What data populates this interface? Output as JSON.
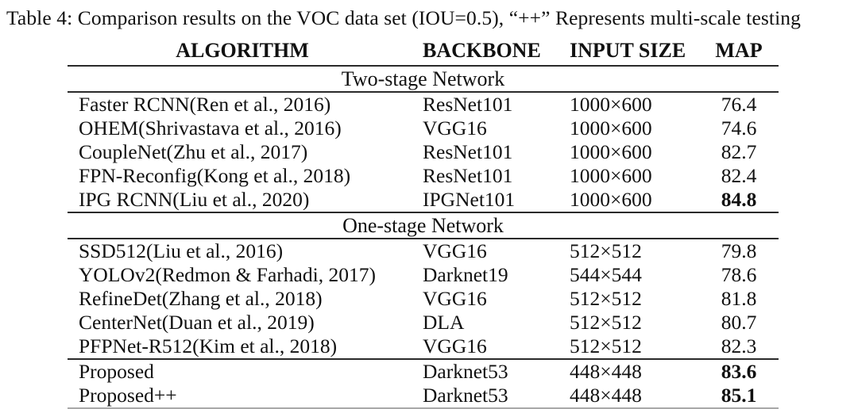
{
  "caption": "Table 4: Comparison results on the VOC data set (IOU=0.5), “++” Represents multi-scale testing",
  "table": {
    "columns": [
      "ALGORITHM",
      "BACKBONE",
      "INPUT SIZE",
      "MAP"
    ],
    "sections": [
      {
        "title": "Two-stage Network",
        "rows": [
          {
            "algorithm": "Faster RCNN(Ren et al., 2016)",
            "backbone": "ResNet101",
            "input_size": "1000×600",
            "map": "76.4",
            "map_bold": false
          },
          {
            "algorithm": "OHEM(Shrivastava et al., 2016)",
            "backbone": "VGG16",
            "input_size": "1000×600",
            "map": "74.6",
            "map_bold": false
          },
          {
            "algorithm": "CoupleNet(Zhu et al., 2017)",
            "backbone": "ResNet101",
            "input_size": "1000×600",
            "map": "82.7",
            "map_bold": false
          },
          {
            "algorithm": "FPN-Reconfig(Kong et al., 2018)",
            "backbone": "ResNet101",
            "input_size": "1000×600",
            "map": "82.4",
            "map_bold": false
          },
          {
            "algorithm": "IPG RCNN(Liu et al., 2020)",
            "backbone": "IPGNet101",
            "input_size": "1000×600",
            "map": "84.8",
            "map_bold": true
          }
        ]
      },
      {
        "title": "One-stage Network",
        "rows": [
          {
            "algorithm": "SSD512(Liu et al., 2016)",
            "backbone": "VGG16",
            "input_size": "512×512",
            "map": "79.8",
            "map_bold": false
          },
          {
            "algorithm": "YOLOv2(Redmon & Farhadi, 2017)",
            "backbone": "Darknet19",
            "input_size": "544×544",
            "map": "78.6",
            "map_bold": false
          },
          {
            "algorithm": "RefineDet(Zhang et al., 2018)",
            "backbone": "VGG16",
            "input_size": "512×512",
            "map": "81.8",
            "map_bold": false
          },
          {
            "algorithm": "CenterNet(Duan et al., 2019)",
            "backbone": "DLA",
            "input_size": "512×512",
            "map": "80.7",
            "map_bold": false
          },
          {
            "algorithm": "PFPNet-R512(Kim et al., 2018)",
            "backbone": "VGG16",
            "input_size": "512×512",
            "map": "82.3",
            "map_bold": false
          }
        ]
      },
      {
        "title": "",
        "rows": [
          {
            "algorithm": "Proposed",
            "backbone": "Darknet53",
            "input_size": "448×448",
            "map": "83.6",
            "map_bold": true
          },
          {
            "algorithm": "Proposed++",
            "backbone": "Darknet53",
            "input_size": "448×448",
            "map": "85.1",
            "map_bold": true
          }
        ]
      }
    ]
  }
}
